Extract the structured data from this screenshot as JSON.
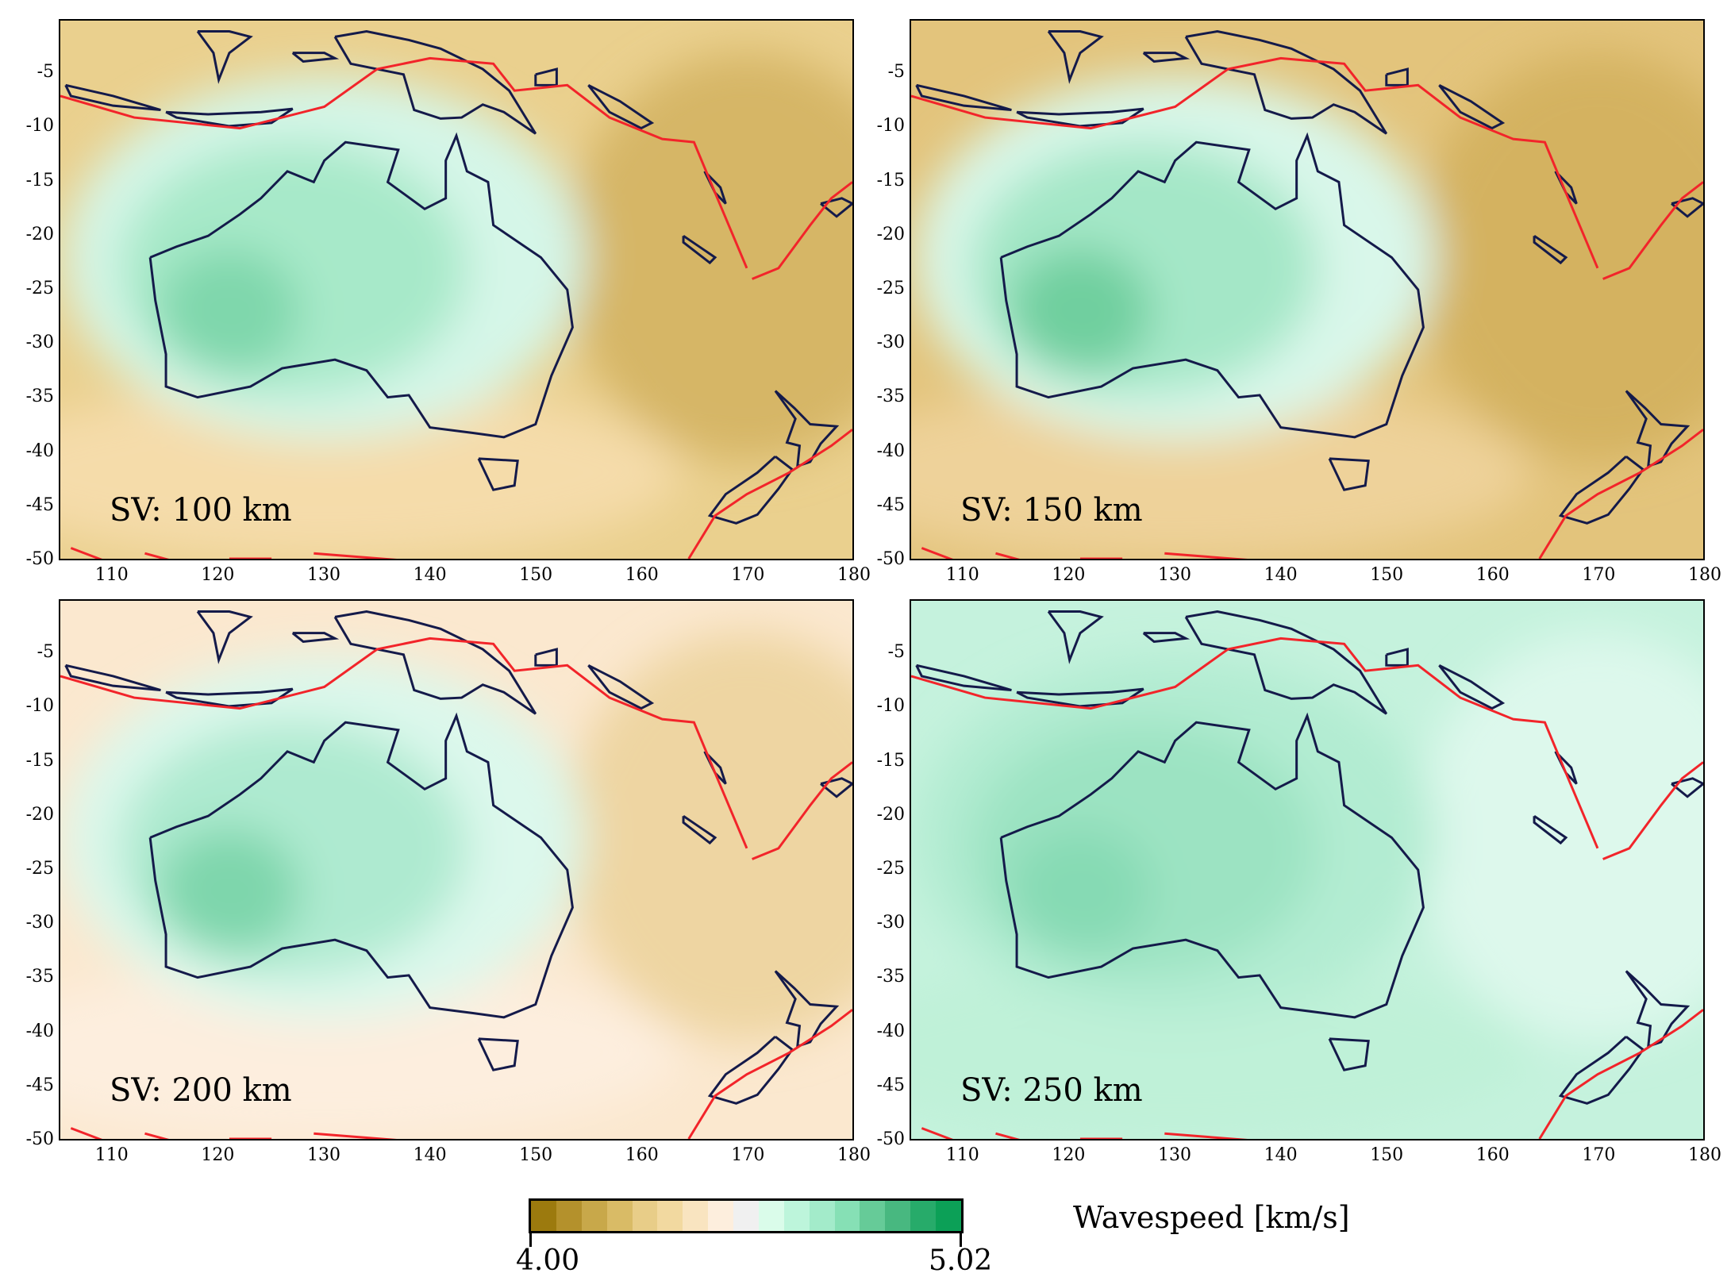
{
  "panels": [
    {
      "label": "SV: 100 km",
      "bg": "#ead08e",
      "south": "#f5dcaa",
      "east": "#d6b666",
      "green1": "#d5f6e8",
      "green2": "#a7e9c9",
      "green3": "#7fd7ac"
    },
    {
      "label": "SV: 150 km",
      "bg": "#e3c47c",
      "south": "#eed29a",
      "east": "#d4b260",
      "green1": "#d9f7ea",
      "green2": "#a4e7c7",
      "green3": "#6fcf9f"
    },
    {
      "label": "SV: 200 km",
      "bg": "#fbe8cf",
      "south": "#fdeede",
      "east": "#eed5a2",
      "green1": "#dcf8ec",
      "green2": "#aeead0",
      "green3": "#7ed6ac"
    },
    {
      "label": "SV: 250 km",
      "bg": "#c5f2dd",
      "south": "#bff1d8",
      "east": "#ddf8ec",
      "green1": "#b2ecd2",
      "green2": "#9ce3c2",
      "green3": "#86dab4"
    }
  ],
  "axes": {
    "lat_ticks": [
      "-5",
      "-10",
      "-15",
      "-20",
      "-25",
      "-30",
      "-35",
      "-40",
      "-45",
      "-50"
    ],
    "lon_ticks": [
      "110",
      "120",
      "130",
      "140",
      "150",
      "160",
      "170",
      "180"
    ],
    "lon_range": [
      105,
      180
    ],
    "lat_range": [
      0,
      -50
    ]
  },
  "colorbar": {
    "min_label": "4.00",
    "max_label": "5.02",
    "title": "Wavespeed [km/s]",
    "colors": [
      "#9c7a0e",
      "#b4912c",
      "#c8a84a",
      "#d9bb66",
      "#e8cd88",
      "#f2d9a0",
      "#f9e4c0",
      "#fdeedd",
      "#f0f0f0",
      "#dafcea",
      "#bdf5db",
      "#a3ebca",
      "#86e0b5",
      "#66cb98",
      "#48b880",
      "#27ab6a",
      "#0ca057"
    ]
  },
  "colors": {
    "coast": "#141a4a",
    "plate_boundary": "#f2242a"
  }
}
